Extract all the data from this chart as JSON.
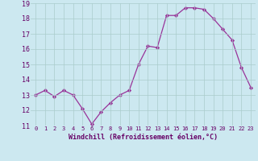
{
  "x": [
    0,
    1,
    2,
    3,
    4,
    5,
    6,
    7,
    8,
    9,
    10,
    11,
    12,
    13,
    14,
    15,
    16,
    17,
    18,
    19,
    20,
    21,
    22,
    23
  ],
  "y": [
    13.0,
    13.3,
    12.9,
    13.3,
    13.0,
    12.1,
    11.1,
    11.9,
    12.5,
    13.0,
    13.3,
    15.0,
    16.2,
    16.1,
    18.2,
    18.2,
    18.7,
    18.7,
    18.6,
    18.0,
    17.3,
    16.6,
    14.8,
    13.5
  ],
  "xlabel": "Windchill (Refroidissement éolien,°C)",
  "ylim": [
    11,
    19
  ],
  "ytick_vals": [
    11,
    12,
    13,
    14,
    15,
    16,
    17,
    18,
    19
  ],
  "xtick_vals": [
    0,
    1,
    2,
    3,
    4,
    5,
    6,
    7,
    8,
    9,
    10,
    11,
    12,
    13,
    14,
    15,
    16,
    17,
    18,
    19,
    20,
    21,
    22,
    23
  ],
  "line_color": "#993399",
  "marker_color": "#993399",
  "bg_color": "#cce8f0",
  "grid_color": "#aacccc",
  "xlabel_color": "#660066",
  "tick_color": "#660066",
  "xlim": [
    -0.5,
    23.5
  ]
}
